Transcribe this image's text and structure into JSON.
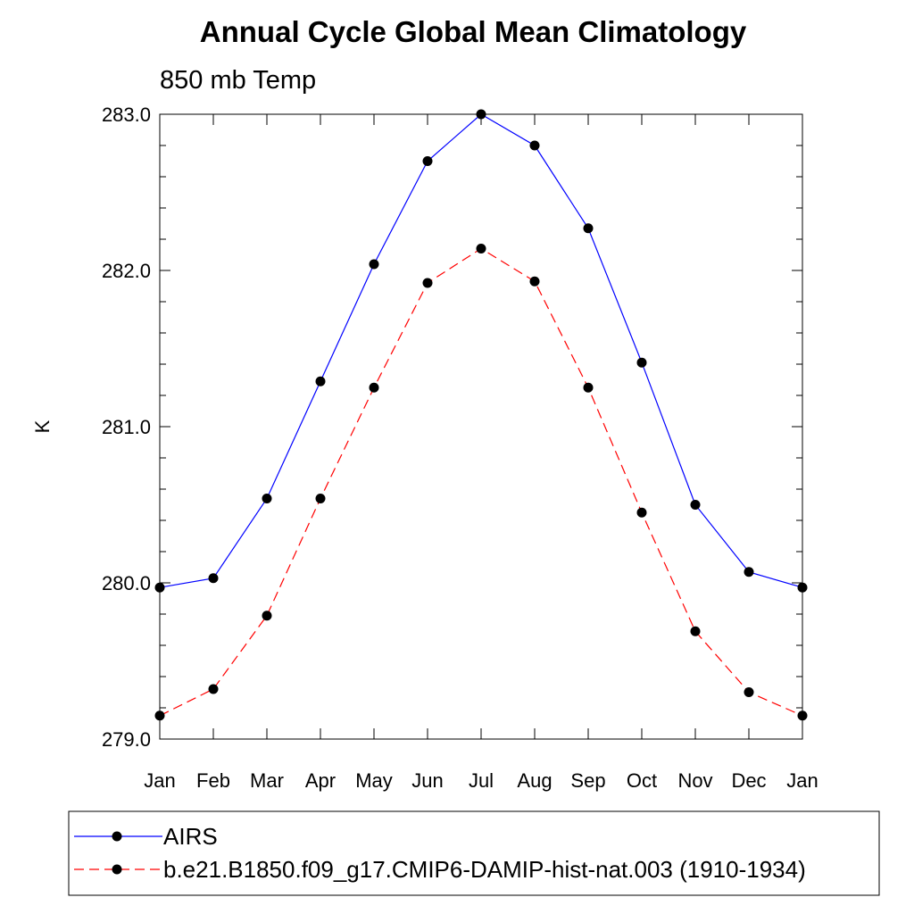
{
  "chart_data": {
    "type": "line",
    "title": "Annual Cycle Global Mean Climatology",
    "subtitle": "850 mb Temp",
    "ylabel": "K",
    "xlabel": "",
    "categories": [
      "Jan",
      "Feb",
      "Mar",
      "Apr",
      "May",
      "Jun",
      "Jul",
      "Aug",
      "Sep",
      "Oct",
      "Nov",
      "Dec",
      "Jan"
    ],
    "ylim": [
      279.0,
      283.0
    ],
    "yticks": [
      "279.0",
      "280.0",
      "281.0",
      "282.0",
      "283.0"
    ],
    "y_minor_step": 0.2,
    "series": [
      {
        "name": "AIRS",
        "color": "#0000ff",
        "dash": "solid",
        "marker": "filled-circle",
        "values": [
          279.97,
          280.03,
          280.54,
          281.29,
          282.04,
          282.7,
          283.0,
          282.8,
          282.27,
          281.41,
          280.5,
          280.07,
          279.97
        ]
      },
      {
        "name": "b.e21.B1850.f09_g17.CMIP6-DAMIP-hist-nat.003 (1910-1934)",
        "color": "#ff0000",
        "dash": "dashed",
        "marker": "filled-circle",
        "values": [
          279.15,
          279.32,
          279.79,
          280.54,
          281.25,
          281.92,
          282.14,
          281.93,
          281.25,
          280.45,
          279.69,
          279.3,
          279.15
        ]
      }
    ],
    "legend_position": "bottom"
  }
}
